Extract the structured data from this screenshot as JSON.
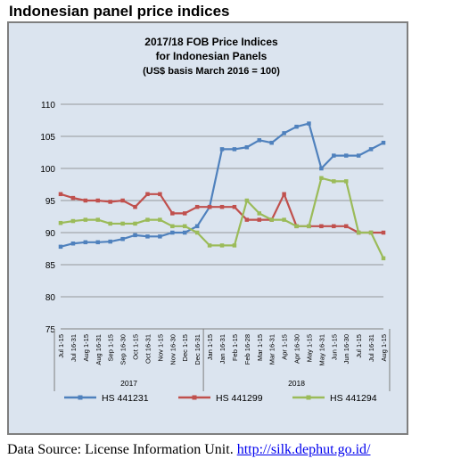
{
  "page": {
    "heading": "Indonesian panel price indices",
    "source_label": "Data Source: License Information Unit.",
    "source_link": "http://silk.dephut.go.id/"
  },
  "chart_data": {
    "type": "line",
    "title_lines": [
      "2017/18 FOB Price Indices",
      "for Indonesian Panels",
      "(US$ basis March 2016 = 100)"
    ],
    "x": [
      "Jul 1-15",
      "Jul 16-31",
      "Aug 1-15",
      "Aug 16-31",
      "Sep 1-15",
      "Sep 16-30",
      "Oct 1-15",
      "Oct 16-31",
      "Nov 1-15",
      "Nov 16-30",
      "Dec 1-15",
      "Dec 16-31",
      "Jan 1-15",
      "Jan 16-31",
      "Feb 1-15",
      "Feb 16-28",
      "Mar 1-15",
      "Mar 16-31",
      "Apr 1-15",
      "Apr 16-30",
      "May 1-15",
      "May 16-31",
      "Jun 1-15",
      "Jun 16-30",
      "Jul 1-15",
      "Jul 16-31",
      "Aug 1-15"
    ],
    "x_tick_labels": [
      "Jul 1-15",
      "Jul 16-31",
      "Aug 1-15",
      "Aug 16-31",
      "Sep 1-15",
      "Sep 16-30",
      "Oct 1-15",
      "Oct 16-31",
      "Nov 1-15",
      "Nov 16-30",
      "Dec 1-15",
      "Dec 16-31",
      "Jan 1-15",
      "Jan 16-31",
      "Feb 1-15",
      "Feb 16-28",
      "Mar 1-15",
      "Mar 16-31",
      "Apr 1-15",
      "Apr 16-30",
      "May 1-15",
      "May 16-31",
      "Jun 1-15",
      "Jun 16-30",
      "Jul 1-15",
      "Jul 16-31",
      "Aug 1-15"
    ],
    "year_groups": [
      {
        "label": "2017",
        "start": 0,
        "end": 11
      },
      {
        "label": "2018",
        "start": 12,
        "end": 26
      }
    ],
    "yticks": [
      75,
      80,
      85,
      90,
      95,
      100,
      105,
      110
    ],
    "ylim": [
      75,
      110
    ],
    "grid": true,
    "legend_position": "bottom",
    "series": [
      {
        "name": "HS 441231",
        "color": "#4f81bd",
        "values": [
          87.8,
          88.3,
          88.5,
          88.5,
          88.6,
          89.0,
          89.6,
          89.4,
          89.4,
          90.0,
          90.0,
          91.0,
          94.0,
          103.0,
          103.0,
          103.3,
          104.4,
          104.0,
          105.5,
          106.5,
          107.0,
          100.0,
          102.0,
          102.0,
          102.0,
          103.0,
          104.0
        ]
      },
      {
        "name": "HS 441299",
        "color": "#c0504d",
        "values": [
          96.0,
          95.4,
          95.0,
          95.0,
          94.8,
          95.0,
          94.0,
          96.0,
          96.0,
          93.0,
          93.0,
          94.0,
          94.0,
          94.0,
          94.0,
          92.0,
          92.0,
          92.0,
          96.0,
          91.0,
          91.0,
          91.0,
          91.0,
          91.0,
          90.0,
          90.0,
          90.0
        ]
      },
      {
        "name": "HS 441294",
        "color": "#9bbb59",
        "values": [
          91.5,
          91.8,
          92.0,
          92.0,
          91.4,
          91.4,
          91.4,
          92.0,
          92.0,
          91.0,
          91.0,
          90.0,
          88.0,
          88.0,
          88.0,
          95.0,
          93.0,
          92.0,
          92.0,
          91.0,
          91.0,
          98.5,
          98.0,
          98.0,
          90.0,
          90.0,
          86.0
        ]
      }
    ]
  }
}
